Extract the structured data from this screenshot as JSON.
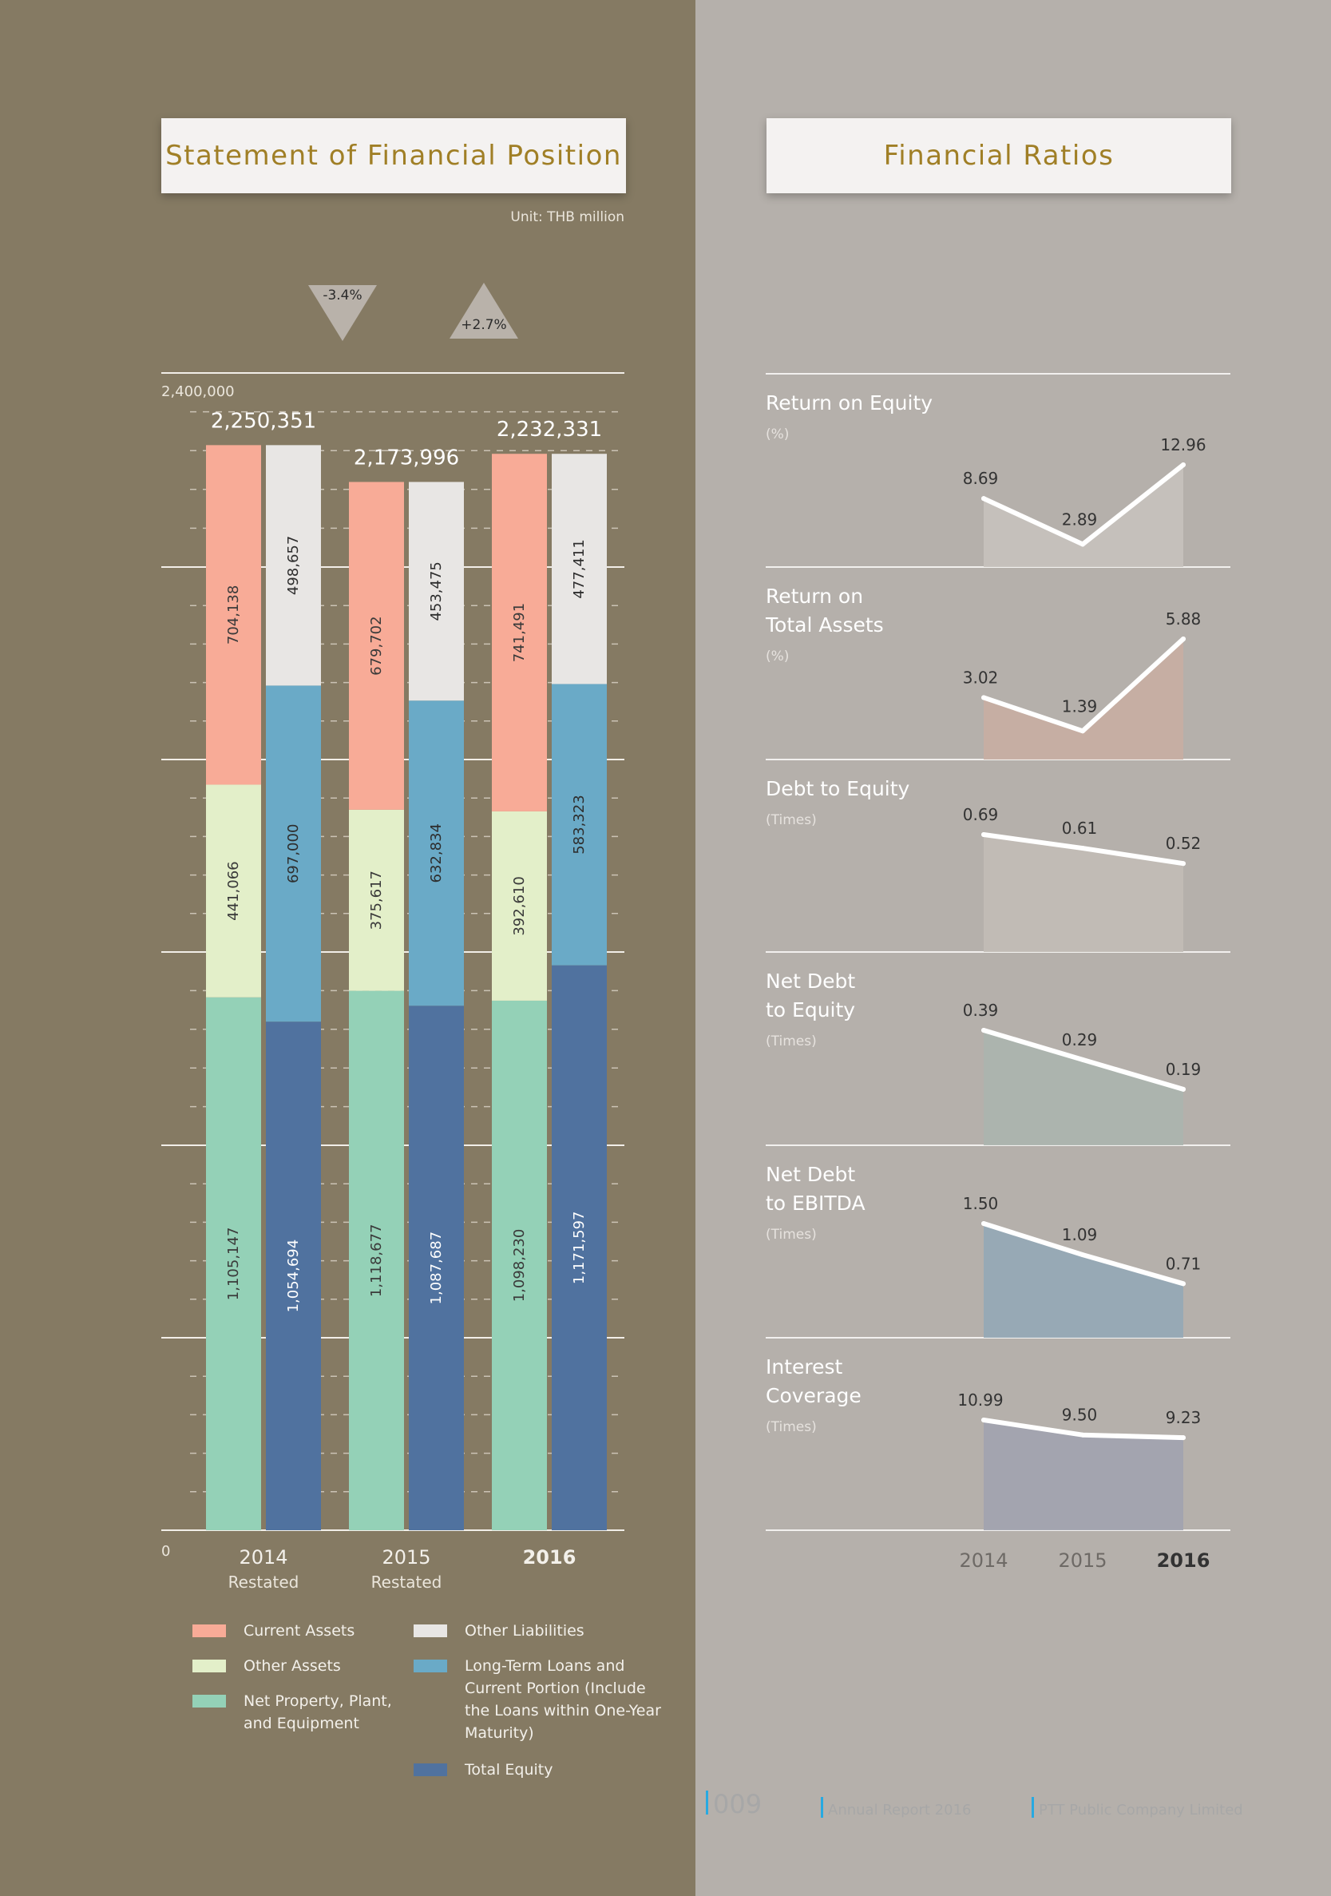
{
  "left_title": "Statement of Financial Position",
  "right_title": "Financial Ratios",
  "unit": "Unit: THB million",
  "changes": [
    {
      "label": "-3.4%",
      "direction": "down"
    },
    {
      "label": "+2.7%",
      "direction": "up"
    }
  ],
  "legend": [
    {
      "label": "Current Assets",
      "color": "#f8ab97"
    },
    {
      "label": "Other Assets",
      "color": "#e3efc9"
    },
    {
      "label": "Net Property, Plant, and Equipment",
      "color": "#94d1b7"
    },
    {
      "label": "Other Liabilities",
      "color": "#e8e6e4"
    },
    {
      "label": "Long-Term Loans and Current Portion (Include the Loans within One-Year Maturity)",
      "color": "#6aaac7"
    },
    {
      "label": "Total Equity",
      "color": "#50729f"
    }
  ],
  "footer": {
    "page": "009",
    "report": "Annual Report 2016",
    "company": "PTT Public Company Limited"
  },
  "chart_data": [
    {
      "type": "bar",
      "stacked": true,
      "title": "Statement of Financial Position",
      "unit": "Unit: THB million",
      "ylim": [
        0,
        2400000
      ],
      "y_tick_labels": [
        "0",
        "2,400,000"
      ],
      "categories": [
        {
          "year": "2014",
          "sub": "Restated",
          "total": "2,250,351",
          "bold": false
        },
        {
          "year": "2015",
          "sub": "Restated",
          "total": "2,173,996",
          "bold": false
        },
        {
          "year": "2016",
          "sub": "",
          "total": "2,232,331",
          "bold": true
        }
      ],
      "assets_series": [
        {
          "name": "Net Property, Plant, and Equipment",
          "color": "#94d1b7",
          "values": [
            1105147,
            1118677,
            1098230
          ],
          "labels": [
            "1,105,147",
            "1,118,677",
            "1,098,230"
          ],
          "text_color": "#3a3a3a"
        },
        {
          "name": "Other Assets",
          "color": "#e3efc9",
          "values": [
            441066,
            375617,
            392610
          ],
          "labels": [
            "441,066",
            "375,617",
            "392,610"
          ],
          "text_color": "#3a3a3a"
        },
        {
          "name": "Current Assets",
          "color": "#f8ab97",
          "values": [
            704138,
            679702,
            741491
          ],
          "labels": [
            "704,138",
            "679,702",
            "741,491"
          ],
          "text_color": "#3a3a3a"
        }
      ],
      "liabilities_series": [
        {
          "name": "Total Equity",
          "color": "#50729f",
          "values": [
            1054694,
            1087687,
            1171597
          ],
          "labels": [
            "1,054,694",
            "1,087,687",
            "1,171,597"
          ],
          "text_color": "#ffffff"
        },
        {
          "name": "Long-Term Loans and Current Portion",
          "color": "#6aaac7",
          "values": [
            697000,
            632834,
            583323
          ],
          "labels": [
            "697,000",
            "632,834",
            "583,323"
          ],
          "text_color": "#2e2e2e"
        },
        {
          "name": "Other Liabilities",
          "color": "#e8e6e4",
          "values": [
            498657,
            453475,
            477411
          ],
          "labels": [
            "498,657",
            "453,475",
            "477,411"
          ],
          "text_color": "#2e2e2e"
        }
      ]
    },
    {
      "type": "line",
      "title": "Financial Ratios",
      "x": [
        "2014",
        "2015",
        "2016"
      ],
      "series": [
        {
          "name": "Return on Equity",
          "unit": "(%)",
          "values": [
            8.69,
            2.89,
            12.96
          ],
          "labels": [
            "8.69",
            "2.89",
            "12.96"
          ],
          "ylim": [
            0,
            15
          ],
          "fill": "#c7c2bd"
        },
        {
          "name": "Return on Total Assets",
          "unit": "(%)",
          "values": [
            3.02,
            1.39,
            5.88
          ],
          "labels": [
            "3.02",
            "1.39",
            "5.88"
          ],
          "ylim": [
            0,
            8
          ],
          "fill": "#c8aea2"
        },
        {
          "name": "Debt to Equity",
          "unit": "(Times)",
          "values": [
            0.69,
            0.61,
            0.52
          ],
          "labels": [
            "0.69",
            "0.61",
            "0.52"
          ],
          "ylim": [
            0,
            0.9
          ],
          "fill": "#c2bcb6"
        },
        {
          "name": "Net Debt to Equity",
          "unit": "(Times)",
          "values": [
            0.39,
            0.29,
            0.19
          ],
          "labels": [
            "0.39",
            "0.29",
            "0.19"
          ],
          "ylim": [
            0,
            0.5
          ],
          "fill": "#abb5ae"
        },
        {
          "name": "Net Debt to EBITDA",
          "unit": "(Times)",
          "values": [
            1.5,
            1.09,
            0.71
          ],
          "labels": [
            "1.50",
            "1.09",
            "0.71"
          ],
          "ylim": [
            0,
            1.7
          ],
          "fill": "#94a9b6"
        },
        {
          "name": "Interest Coverage",
          "unit": "(Times)",
          "values": [
            10.99,
            9.5,
            9.23
          ],
          "labels": [
            "10.99",
            "9.50",
            "9.23"
          ],
          "ylim": [
            0,
            13
          ],
          "fill": "#a1a3af"
        }
      ]
    }
  ]
}
